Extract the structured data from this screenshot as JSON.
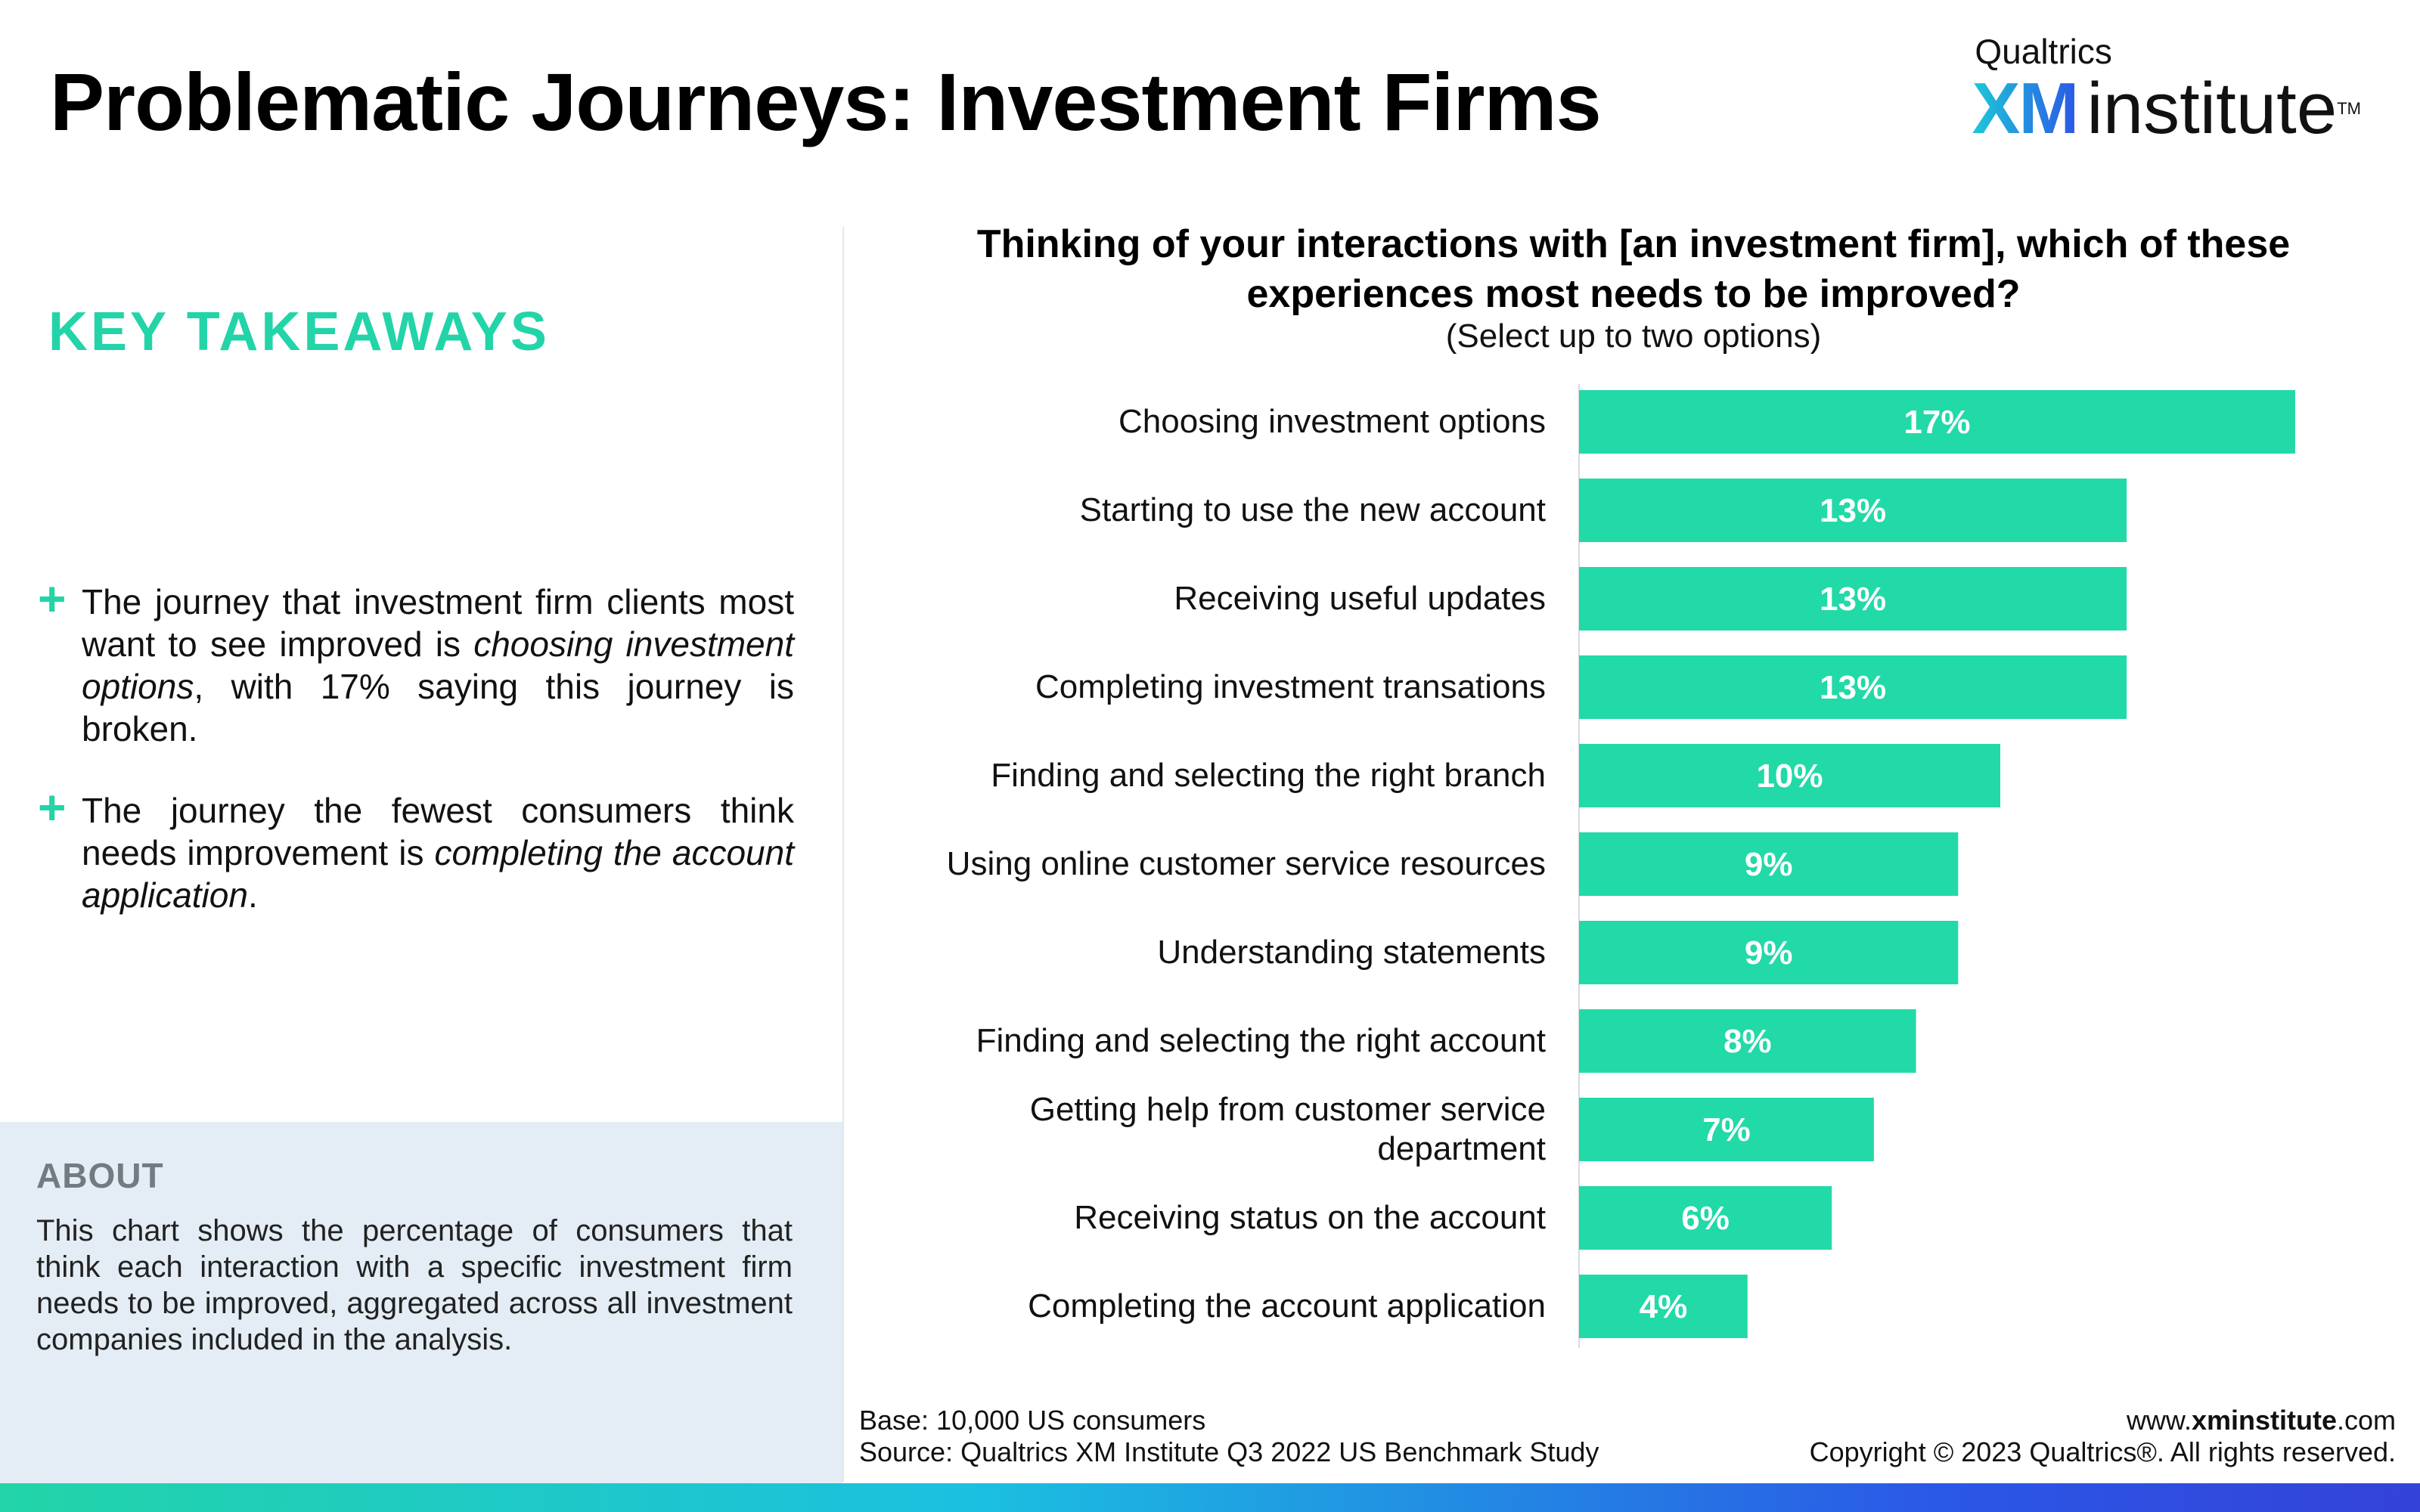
{
  "header": {
    "title": "Problematic Journeys: Investment Firms",
    "logo_small": "Qualtrics",
    "logo_xm": "XM",
    "logo_institute": "institute",
    "logo_tm": "TM"
  },
  "takeaways": {
    "heading": "KEY TAKEAWAYS",
    "items": [
      {
        "pre": "The journey that investment firm clients most want to see improved is ",
        "em": "choosing investment options",
        "post": ", with 17% saying this journey is broken."
      },
      {
        "pre": "The journey the fewest consumers think needs improvement is ",
        "em": "completing the account application",
        "post": "."
      }
    ]
  },
  "about": {
    "heading": "ABOUT",
    "text": "This chart shows the percentage of consumers that think each interaction with a specific investment firm needs to be improved, aggregated across all investment companies included in the analysis."
  },
  "chart_data": {
    "type": "bar",
    "orientation": "horizontal",
    "title": "Thinking of your interactions with [an investment firm], which of these experiences most needs to be improved?",
    "subtitle": "(Select up to two options)",
    "categories": [
      "Choosing investment options",
      "Starting to use the new account",
      "Receiving useful updates",
      "Completing investment transations",
      "Finding and selecting the right branch",
      "Using online customer service resources",
      "Understanding statements",
      "Finding and selecting the right account",
      "Getting help from customer service department",
      "Receiving status on the account",
      "Completing the account application"
    ],
    "values": [
      17,
      13,
      13,
      13,
      10,
      9,
      9,
      8,
      7,
      6,
      4
    ],
    "labels": [
      "17%",
      "13%",
      "13%",
      "13%",
      "10%",
      "9%",
      "9%",
      "8%",
      "7%",
      "6%",
      "4%"
    ],
    "unit": "%",
    "bar_color": "#22d9a8"
  },
  "footer": {
    "base": "Base: 10,000 US consumers",
    "source": "Source: Qualtrics XM Institute Q3 2022 US Benchmark Study",
    "web_pre": "www.",
    "web_bold": "xminstitute",
    "web_post": ".com",
    "copyright": "Copyright © 2023 Qualtrics®. All rights reserved."
  }
}
